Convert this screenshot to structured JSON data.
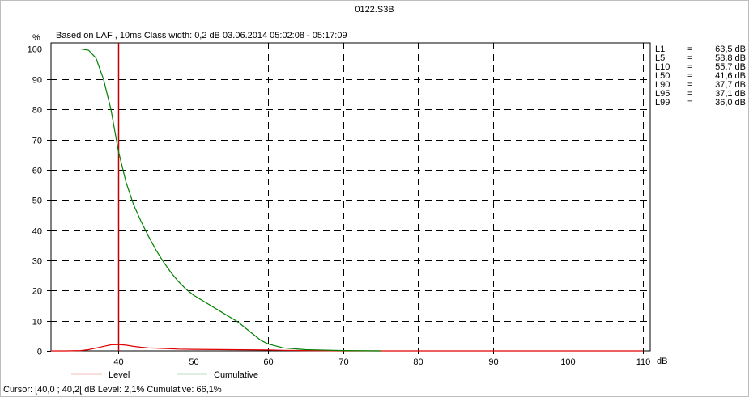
{
  "window": {
    "title": "0122.S3B"
  },
  "header": {
    "y_unit": "%",
    "info": "Based on LAF , 10ms   Class width: 0,2 dB  03.06.2014 05:02:08 - 05:17:09"
  },
  "x_unit": "dB",
  "stats": [
    {
      "name": "L1",
      "eq": "=",
      "value": "63,5 dB"
    },
    {
      "name": "L5",
      "eq": "=",
      "value": "58,8 dB"
    },
    {
      "name": "L10",
      "eq": "=",
      "value": "55,7 dB"
    },
    {
      "name": "L50",
      "eq": "=",
      "value": "41,6 dB"
    },
    {
      "name": "L90",
      "eq": "=",
      "value": "37,7 dB"
    },
    {
      "name": "L95",
      "eq": "=",
      "value": "37,1 dB"
    },
    {
      "name": "L99",
      "eq": "=",
      "value": "36,0 dB"
    }
  ],
  "status": {
    "cursor": "Cursor: [40,0 ; 40,2[ dB  Level: 2,1%  Cumulative: 66,1%"
  },
  "colors": {
    "level": "#e00000",
    "cumulative": "#008000",
    "cursor": "#c00000",
    "grid": "#000000"
  },
  "chart_data": {
    "type": "line",
    "xlim": [
      31,
      111
    ],
    "ylim": [
      0,
      102
    ],
    "xticks": [
      40,
      50,
      60,
      70,
      80,
      90,
      100,
      110
    ],
    "yticks": [
      0,
      10,
      20,
      30,
      40,
      50,
      60,
      70,
      80,
      90,
      100
    ],
    "grid": true,
    "legend_position": "bottom",
    "cursor_x": 40,
    "series": [
      {
        "name": "Level",
        "color": "#e00000",
        "x": [
          31,
          33,
          35,
          36,
          37,
          38,
          39,
          40,
          41,
          42,
          43,
          44,
          45,
          46,
          48,
          50,
          55,
          60,
          62,
          65,
          70,
          110
        ],
        "y": [
          0,
          0,
          0.1,
          0.4,
          0.9,
          1.5,
          2.0,
          2.1,
          1.9,
          1.5,
          1.2,
          1.0,
          0.9,
          0.8,
          0.6,
          0.5,
          0.4,
          0.3,
          0.2,
          0.1,
          0,
          0
        ]
      },
      {
        "name": "Cumulative",
        "color": "#008000",
        "x": [
          35,
          36,
          37,
          38,
          39,
          40,
          41,
          42,
          43,
          44,
          45,
          46,
          47,
          48,
          49,
          50,
          52,
          54,
          55,
          56,
          57,
          58,
          59,
          60,
          62,
          65,
          70,
          75
        ],
        "y": [
          100,
          99.6,
          97,
          90,
          80,
          66.1,
          56,
          48.5,
          43,
          38,
          33.5,
          29.5,
          26,
          23,
          20.5,
          18.5,
          15.5,
          12.5,
          11,
          9.5,
          7.5,
          5.5,
          3.5,
          2.3,
          1,
          0.4,
          0.1,
          0
        ]
      }
    ]
  }
}
